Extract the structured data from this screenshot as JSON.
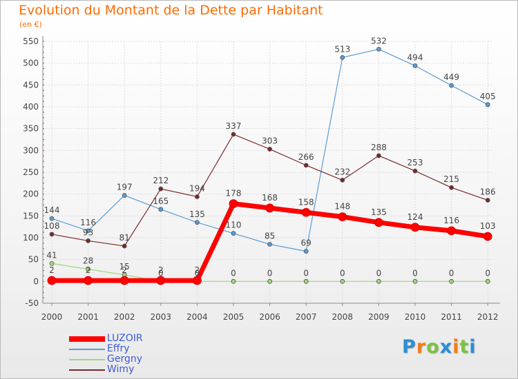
{
  "title": "Evolution du Montant de la Dette par Habitant",
  "subtitle": "(en €)",
  "logo": {
    "letters": [
      "P",
      "r",
      "o",
      "x",
      "i",
      "t",
      "i"
    ],
    "colors": [
      "#2a8fd6",
      "#f07d1a",
      "#7cc242",
      "#2a8fd6",
      "#f07d1a",
      "#7cc242",
      "#2a8fd6"
    ]
  },
  "chart_data": {
    "type": "line",
    "x": [
      "2000",
      "2001",
      "2002",
      "2003",
      "2004",
      "2005",
      "2006",
      "2007",
      "2008",
      "2009",
      "2010",
      "2011",
      "2012"
    ],
    "ylim": [
      -50,
      550
    ],
    "yticks": [
      "-50",
      "0",
      "50",
      "100",
      "150",
      "200",
      "250",
      "300",
      "350",
      "400",
      "450",
      "500",
      "550"
    ],
    "ytick_values": [
      -50,
      0,
      50,
      100,
      150,
      200,
      250,
      300,
      350,
      400,
      450,
      500,
      550
    ],
    "grid": true,
    "legend_position": "bottom-left",
    "series": [
      {
        "name": "Effry",
        "color": "#5a9bd5",
        "width": 1.2,
        "values": [
          144,
          116,
          197,
          165,
          135,
          110,
          85,
          69,
          513,
          532,
          494,
          449,
          405
        ],
        "labels": [
          "144",
          "116",
          "197",
          "165",
          "135",
          "110",
          "85",
          "69",
          "513",
          "532",
          "494",
          "449",
          "405"
        ]
      },
      {
        "name": "Gergny",
        "color": "#9ed67a",
        "width": 1.2,
        "values": [
          41,
          28,
          15,
          0,
          0,
          0,
          0,
          0,
          0,
          0,
          0,
          0,
          0
        ],
        "labels": [
          "41",
          "28",
          "15",
          "0",
          "0",
          "0",
          "0",
          "0",
          "0",
          "0",
          "0",
          "0",
          "0"
        ]
      },
      {
        "name": "Wimy",
        "color": "#7a2828",
        "width": 1.2,
        "values": [
          108,
          93,
          81,
          212,
          194,
          337,
          303,
          266,
          232,
          288,
          253,
          215,
          186
        ],
        "labels": [
          "108",
          "93",
          "81",
          "212",
          "194",
          "337",
          "303",
          "266",
          "232",
          "288",
          "253",
          "215",
          "186"
        ]
      },
      {
        "name": "LUZOIR",
        "color": "#ff0000",
        "width": 7,
        "values": [
          2,
          2,
          2,
          2,
          2,
          178,
          168,
          158,
          148,
          135,
          124,
          116,
          103
        ],
        "labels": [
          "2",
          "2",
          "2",
          "2",
          "2",
          "178",
          "168",
          "158",
          "148",
          "135",
          "124",
          "116",
          "103"
        ]
      }
    ],
    "legend_order": [
      "LUZOIR",
      "Effry",
      "Gergny",
      "Wimy"
    ]
  }
}
